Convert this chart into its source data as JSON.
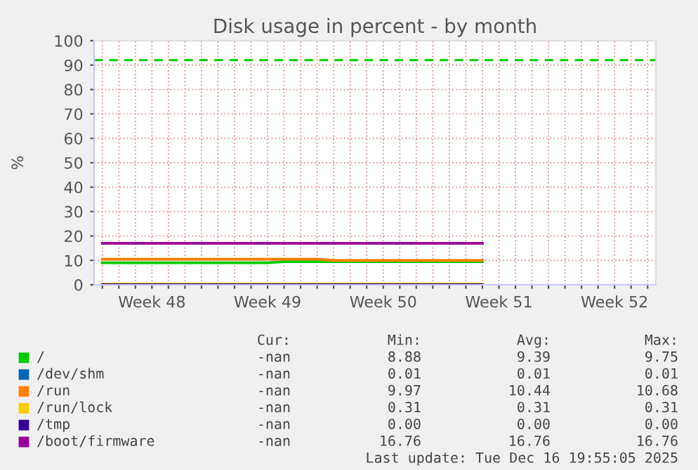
{
  "chart_data": {
    "type": "line",
    "title": "Disk usage in percent - by month",
    "ylabel": "%",
    "categories": [
      null,
      null,
      null,
      "Week 48",
      null,
      null,
      null,
      null,
      null,
      null,
      "Week 49",
      null,
      null,
      null,
      null,
      null,
      null,
      "Week 50",
      null,
      null,
      null,
      null,
      null,
      null,
      "Week 51",
      null,
      null,
      null,
      null,
      null,
      null,
      "Week 52",
      null,
      null
    ],
    "ylim": [
      0,
      100
    ],
    "yticks": [
      0,
      10,
      20,
      30,
      40,
      50,
      60,
      70,
      80,
      90,
      100
    ],
    "grid": true,
    "legend": "bottom",
    "line_style": "solid",
    "marker": "none",
    "series": [
      {
        "name": "/",
        "color": "#00cc00",
        "values": [
          9,
          9,
          9,
          9,
          9,
          9,
          9,
          9,
          9,
          9,
          9,
          9.5,
          9.5,
          9.5,
          9.5,
          9.5,
          9.5,
          9.5,
          9.5,
          9.5,
          9.5,
          9.5,
          9.5,
          9.5,
          null,
          null,
          null,
          null,
          null,
          null,
          null,
          null,
          null,
          null
        ]
      },
      {
        "name": "/dev/shm",
        "color": "#0066b3",
        "values": [
          null,
          null,
          null,
          null,
          null,
          null,
          null,
          null,
          null,
          null,
          null,
          null,
          null,
          null,
          null,
          null,
          null,
          null,
          null,
          null,
          null,
          null,
          null,
          null,
          null,
          null,
          null,
          null,
          null,
          null,
          null,
          null,
          null,
          null
        ]
      },
      {
        "name": "/run",
        "color": "#ff8000",
        "values": [
          10.5,
          10.5,
          10.5,
          10.5,
          10.5,
          10.5,
          10.5,
          10.5,
          10.5,
          10.5,
          10.5,
          10.5,
          10.5,
          10.5,
          10,
          10,
          10,
          10,
          10,
          10,
          10,
          10,
          10,
          10,
          null,
          null,
          null,
          null,
          null,
          null,
          null,
          null,
          null,
          null
        ]
      },
      {
        "name": "/run/lock",
        "color": "#ffcc00",
        "values": [
          0.3,
          0.3,
          0.3,
          0.3,
          0.3,
          0.3,
          0.3,
          0.3,
          0.3,
          0.3,
          0.3,
          0.3,
          0.3,
          0.3,
          0.3,
          0.3,
          0.3,
          0.3,
          0.3,
          0.3,
          0.3,
          0.3,
          0.3,
          0.3,
          null,
          null,
          null,
          null,
          null,
          null,
          null,
          null,
          null,
          null
        ]
      },
      {
        "name": "/tmp",
        "color": "#330099",
        "values": [
          0,
          0,
          0,
          0,
          0,
          0,
          0,
          0,
          0,
          0,
          0,
          0,
          0,
          0,
          0,
          0,
          0,
          0,
          0,
          0,
          0,
          0,
          0,
          0,
          null,
          null,
          null,
          null,
          null,
          null,
          null,
          null,
          null,
          null
        ]
      },
      {
        "name": "/boot/firmware",
        "color": "#990099",
        "values": [
          17,
          17,
          17,
          17,
          17,
          17,
          17,
          17,
          17,
          17,
          17,
          17,
          17,
          17,
          17,
          17,
          17,
          17,
          17,
          17,
          17,
          17,
          17,
          17,
          null,
          null,
          null,
          null,
          null,
          null,
          null,
          null,
          null,
          null
        ]
      }
    ],
    "ref_lines": [
      {
        "axis": "y",
        "value": 92,
        "label": null,
        "color": "#00cc00",
        "line_style": "dashed"
      }
    ],
    "annotations": [
      "Cur:",
      "Min:",
      "Avg:",
      "Max:",
      "-nan",
      "8.88",
      "9.39",
      "9.75",
      "-nan",
      "0.01",
      "0.01",
      "0.01",
      "-nan",
      "9.97",
      "10.44",
      "10.68",
      "-nan",
      "0.31",
      "0.31",
      "0.31",
      "-nan",
      "0.00",
      "0.00",
      "0.00",
      "-nan",
      "16.76",
      "16.76",
      "16.76",
      "Last update: Tue Dec 16 19:55:05 2025"
    ]
  }
}
